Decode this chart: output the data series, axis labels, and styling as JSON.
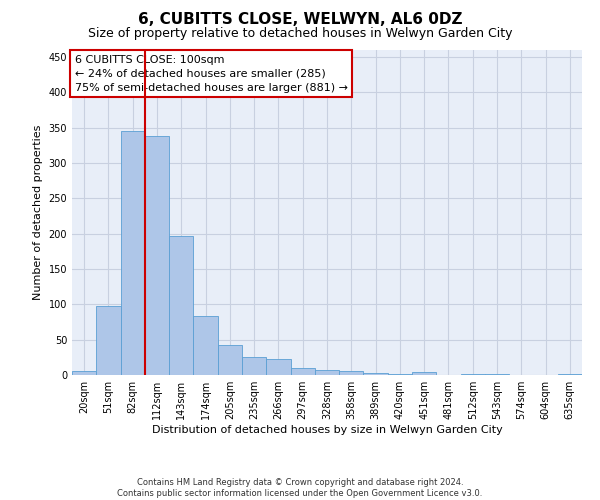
{
  "title": "6, CUBITTS CLOSE, WELWYN, AL6 0DZ",
  "subtitle": "Size of property relative to detached houses in Welwyn Garden City",
  "xlabel": "Distribution of detached houses by size in Welwyn Garden City",
  "ylabel": "Number of detached properties",
  "footer_line1": "Contains HM Land Registry data © Crown copyright and database right 2024.",
  "footer_line2": "Contains public sector information licensed under the Open Government Licence v3.0.",
  "annotation_line1": "6 CUBITTS CLOSE: 100sqm",
  "annotation_line2": "← 24% of detached houses are smaller (285)",
  "annotation_line3": "75% of semi-detached houses are larger (881) →",
  "bar_labels": [
    "20sqm",
    "51sqm",
    "82sqm",
    "112sqm",
    "143sqm",
    "174sqm",
    "205sqm",
    "235sqm",
    "266sqm",
    "297sqm",
    "328sqm",
    "358sqm",
    "389sqm",
    "420sqm",
    "451sqm",
    "481sqm",
    "512sqm",
    "543sqm",
    "574sqm",
    "604sqm",
    "635sqm"
  ],
  "bar_values": [
    5,
    98,
    345,
    338,
    197,
    83,
    43,
    25,
    22,
    10,
    7,
    5,
    3,
    2,
    4,
    0,
    2,
    1,
    0,
    0,
    2
  ],
  "bar_color": "#aec6e8",
  "bar_edge_color": "#5a9fd4",
  "vline_x_index": 2,
  "vline_color": "#cc0000",
  "annotation_box_color": "#cc0000",
  "ylim": [
    0,
    460
  ],
  "yticks": [
    0,
    50,
    100,
    150,
    200,
    250,
    300,
    350,
    400,
    450
  ],
  "grid_color": "#c8d0e0",
  "background_color": "#e8eef8",
  "title_fontsize": 11,
  "subtitle_fontsize": 9,
  "annotation_fontsize": 8,
  "ylabel_fontsize": 8,
  "xlabel_fontsize": 8,
  "tick_fontsize": 7,
  "footer_fontsize": 6
}
